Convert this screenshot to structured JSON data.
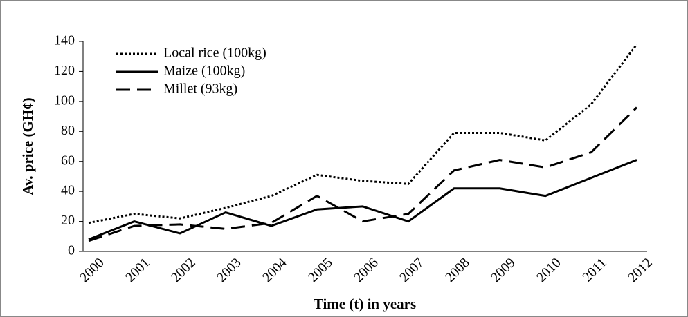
{
  "chart_data": {
    "type": "line",
    "y_label": "Av. price (GH¢)",
    "x_label": "Time (t) in years",
    "categories": [
      "2000",
      "2001",
      "2002",
      "2003",
      "2004",
      "2005",
      "2006",
      "2007",
      "2008",
      "2009",
      "2010",
      "2011",
      "2012"
    ],
    "series": [
      {
        "name": "Local rice (100kg)",
        "color": "#000000",
        "line_style": "dotted",
        "values": [
          19,
          25,
          22,
          29,
          37,
          51,
          47,
          45,
          79,
          79,
          74,
          98,
          138
        ]
      },
      {
        "name": "Maize (100kg)",
        "color": "#000000",
        "line_style": "solid",
        "values": [
          8,
          20,
          12,
          26,
          17,
          28,
          30,
          20,
          42,
          42,
          37,
          49,
          61
        ]
      },
      {
        "name": "Millet (93kg)",
        "color": "#000000",
        "line_style": "dashed",
        "values": [
          7,
          17,
          18,
          15,
          19,
          37,
          20,
          25,
          54,
          61,
          56,
          66,
          96
        ]
      }
    ],
    "ylim": [
      0,
      140
    ],
    "yticks": [
      0,
      20,
      40,
      60,
      80,
      100,
      120,
      140
    ],
    "grid": false
  }
}
